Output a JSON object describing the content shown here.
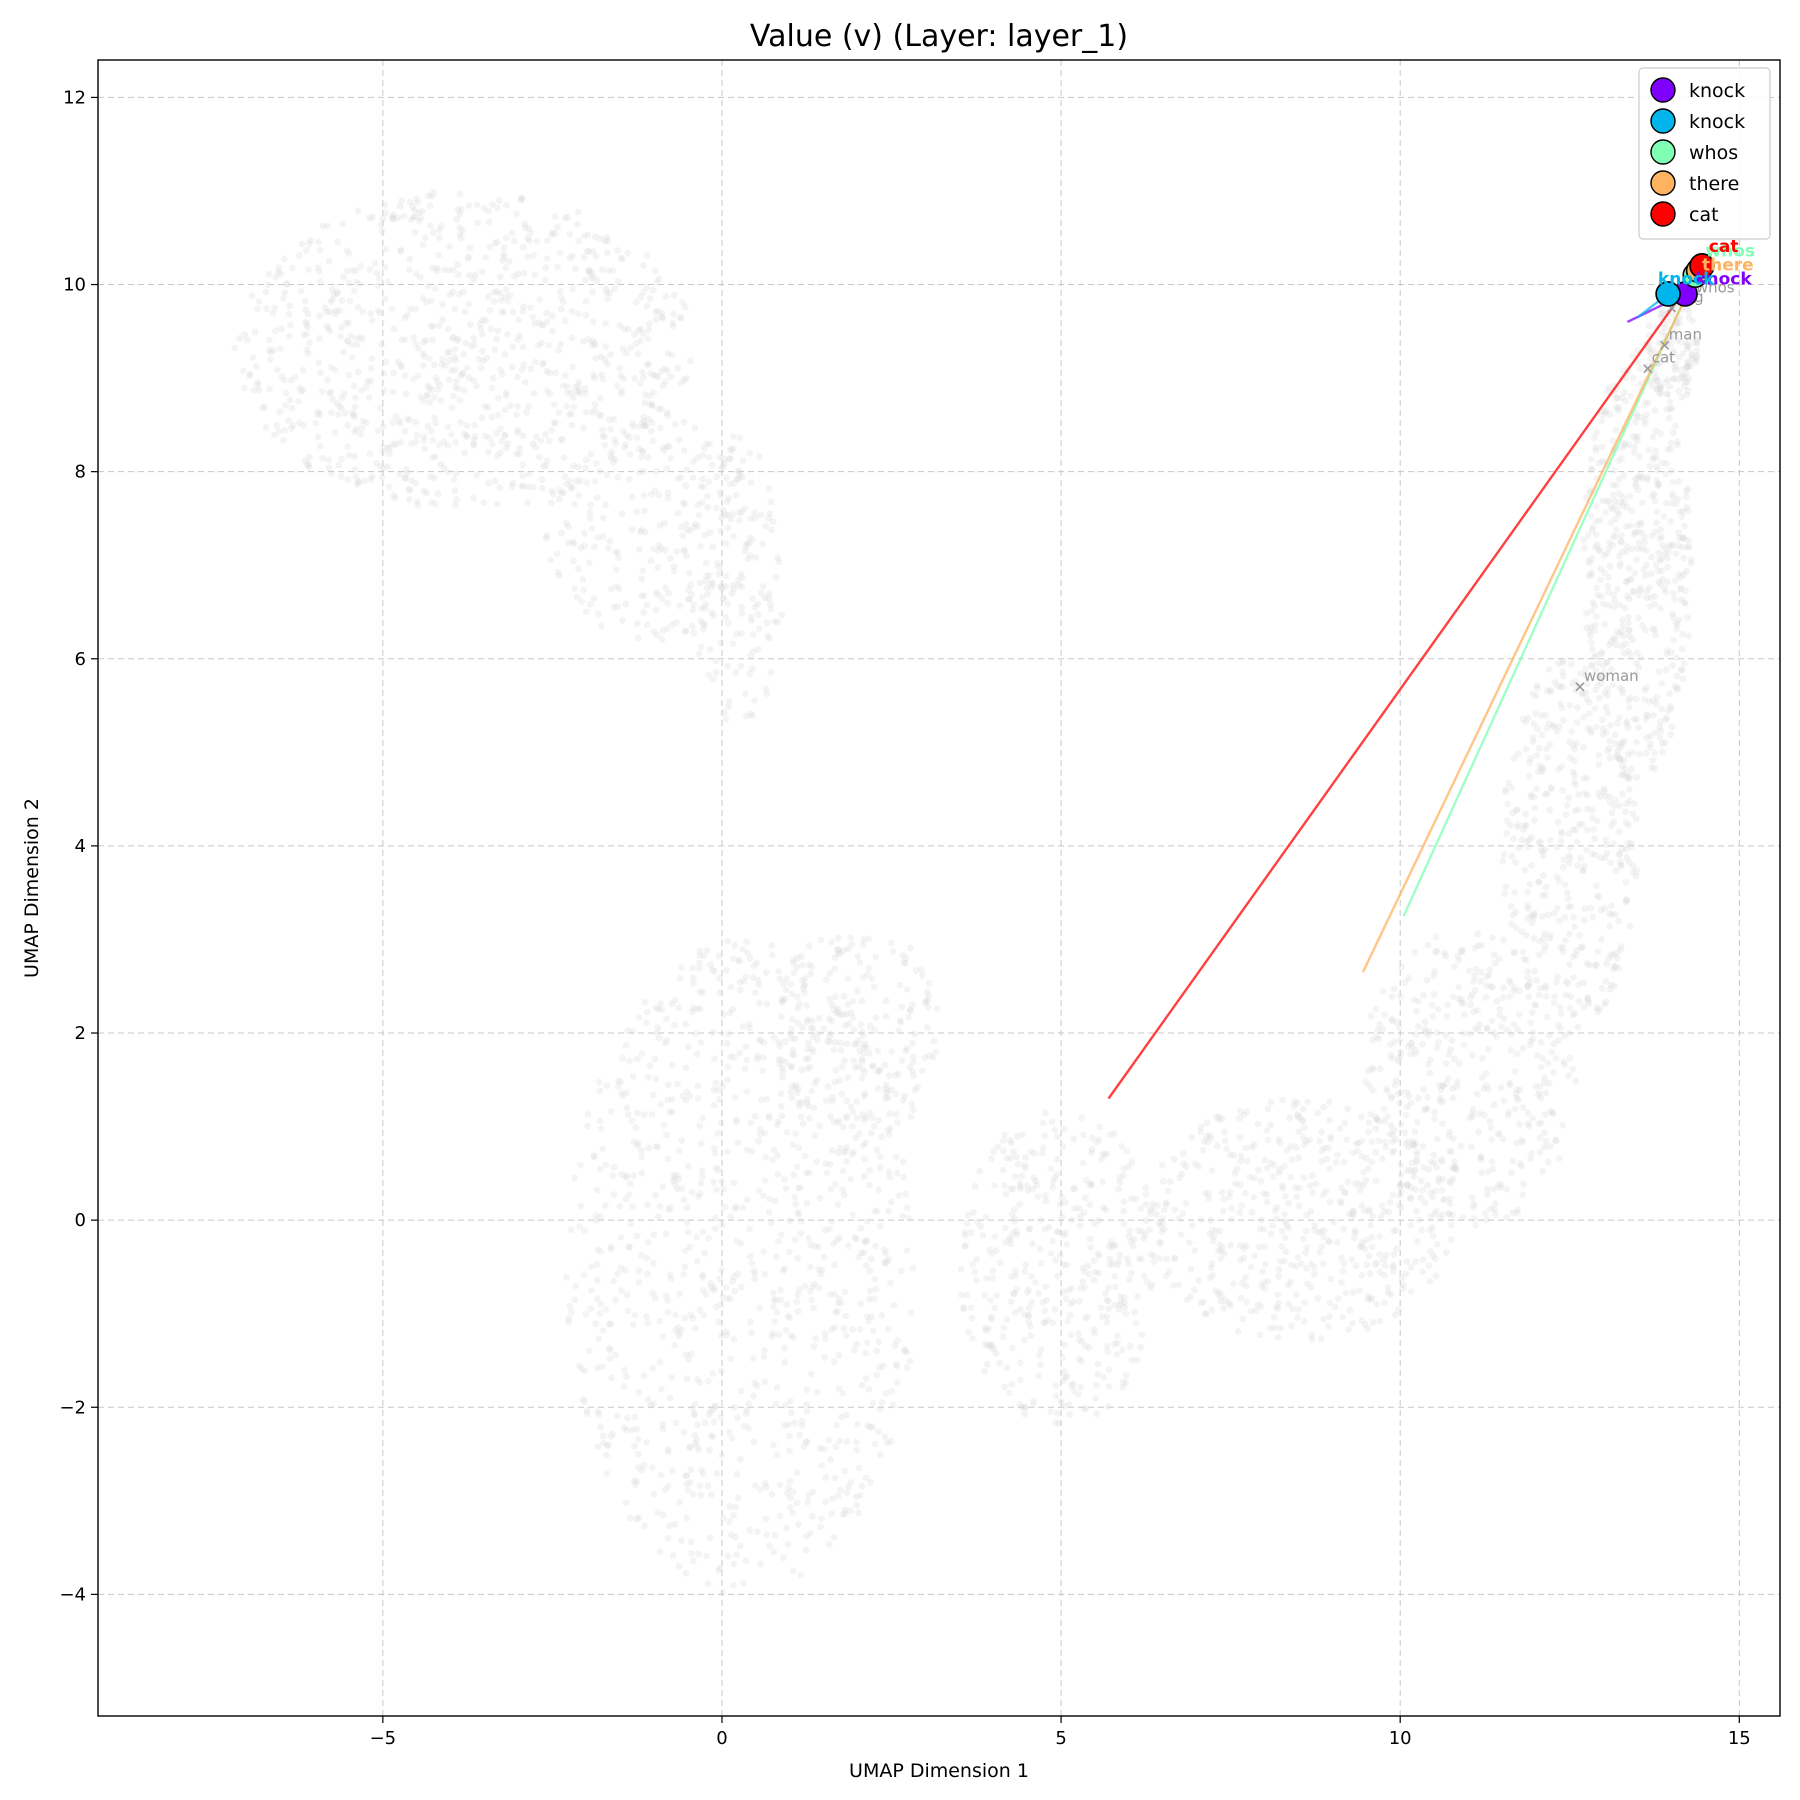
{
  "chart_data": {
    "type": "scatter",
    "title": "Value (v) (Layer: layer_1)",
    "xlabel": "UMAP Dimension 1",
    "ylabel": "UMAP Dimension 2",
    "xlim": [
      -9.2,
      15.6
    ],
    "ylim": [
      -5.3,
      12.4
    ],
    "xticks": [
      -5,
      0,
      5,
      10,
      15
    ],
    "yticks": [
      -4,
      -2,
      0,
      2,
      4,
      6,
      8,
      10,
      12
    ],
    "grid": true,
    "legend_position": "top-right",
    "background_cloud": {
      "color": "#d9d9d9",
      "regions": [
        {
          "cx": -3.8,
          "cy": 9.3,
          "rx": 3.4,
          "ry": 1.7,
          "count": 900
        },
        {
          "cx": -1.0,
          "cy": 7.4,
          "rx": 1.6,
          "ry": 1.2,
          "count": 250
        },
        {
          "cx": 0.2,
          "cy": 6.8,
          "rx": 0.7,
          "ry": 1.6,
          "count": 120
        },
        {
          "cx": 0.3,
          "cy": -0.5,
          "rx": 2.6,
          "ry": 3.5,
          "count": 1000
        },
        {
          "cx": 2.0,
          "cy": 2.0,
          "rx": 1.2,
          "ry": 1.2,
          "count": 200
        },
        {
          "cx": 5.0,
          "cy": -0.5,
          "rx": 1.5,
          "ry": 1.7,
          "count": 400
        },
        {
          "cx": 8.5,
          "cy": 0.0,
          "rx": 2.3,
          "ry": 1.3,
          "count": 500
        },
        {
          "cx": 11.0,
          "cy": 1.5,
          "rx": 1.6,
          "ry": 1.6,
          "count": 400
        },
        {
          "cx": 12.5,
          "cy": 4.0,
          "rx": 1.0,
          "ry": 2.0,
          "count": 400
        },
        {
          "cx": 13.5,
          "cy": 7.0,
          "rx": 0.8,
          "ry": 2.3,
          "count": 500
        },
        {
          "cx": 14.0,
          "cy": 9.3,
          "rx": 0.4,
          "ry": 0.6,
          "count": 120
        }
      ]
    },
    "reference_points": [
      {
        "label": "man",
        "x": 13.9,
        "y": 9.35
      },
      {
        "label": "cat",
        "x": 13.65,
        "y": 9.1
      },
      {
        "label": "woman",
        "x": 12.65,
        "y": 5.7
      },
      {
        "label": "dog",
        "x": 14.0,
        "y": 9.75
      },
      {
        "label": "whos",
        "x": 14.3,
        "y": 9.85
      }
    ],
    "series": [
      {
        "name": "knock",
        "color": "#8000ff",
        "x": 14.2,
        "y": 9.9,
        "arrow_from": [
          13.35,
          9.6
        ],
        "label_offset": [
          0.15,
          0.1
        ]
      },
      {
        "name": "knock",
        "color": "#00b5eb",
        "x": 13.95,
        "y": 9.9,
        "arrow_from": [
          13.5,
          9.65
        ],
        "label_offset": [
          -0.15,
          0.1
        ]
      },
      {
        "name": "whos",
        "color": "#80ffb4",
        "x": 14.35,
        "y": 10.1,
        "arrow_from": [
          10.05,
          3.25
        ],
        "label_offset": [
          0.15,
          0.2
        ]
      },
      {
        "name": "there",
        "color": "#ffb360",
        "x": 14.4,
        "y": 10.15,
        "arrow_from": [
          9.45,
          2.65
        ],
        "label_offset": [
          0.05,
          0.0
        ]
      },
      {
        "name": "cat",
        "color": "#ff0000",
        "x": 14.45,
        "y": 10.2,
        "arrow_from": [
          5.7,
          1.3
        ],
        "label_offset": [
          0.1,
          0.15
        ]
      }
    ]
  }
}
